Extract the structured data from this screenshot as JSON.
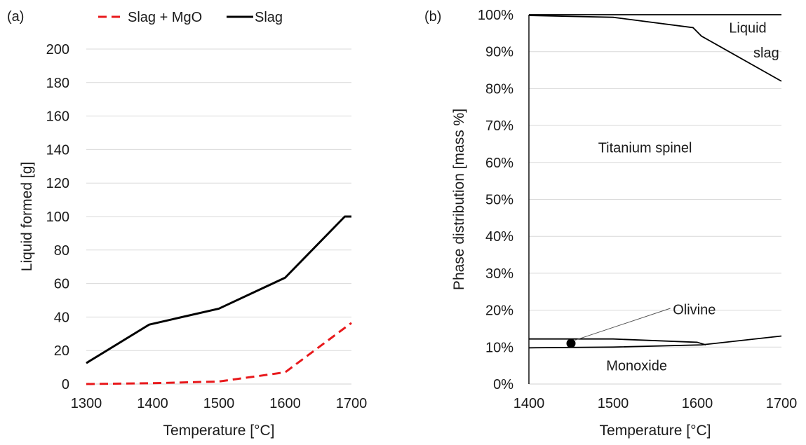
{
  "chart_data": [
    {
      "panel_label": "(a)",
      "type": "line",
      "xlabel": "Temperature [°C]",
      "ylabel": "Liquid formed [g]",
      "xlim": [
        1300,
        1700
      ],
      "ylim": [
        0,
        200
      ],
      "x_ticks": [
        1300,
        1400,
        1500,
        1600,
        1700
      ],
      "y_ticks": [
        0,
        20,
        40,
        60,
        80,
        100,
        120,
        140,
        160,
        180,
        200
      ],
      "grid": "horizontal",
      "legend_position": "top",
      "series": [
        {
          "name": "Slag + MgO",
          "color": "#e8191c",
          "dash": "dashed",
          "x": [
            1300,
            1400,
            1500,
            1600,
            1700
          ],
          "y": [
            0,
            0.5,
            1.5,
            7,
            36.5
          ]
        },
        {
          "name": "Slag",
          "color": "#000000",
          "dash": "solid",
          "x": [
            1300,
            1395,
            1500,
            1600,
            1690,
            1700
          ],
          "y": [
            12.5,
            35.5,
            45,
            63.5,
            100,
            100
          ]
        }
      ]
    },
    {
      "panel_label": "(b)",
      "type": "area",
      "xlabel": "Temperature [°C]",
      "ylabel": "Phase distribution [mass %]",
      "xlim": [
        1400,
        1700
      ],
      "ylim": [
        0,
        100
      ],
      "x_ticks": [
        "1400",
        "1500",
        "1600",
        "1700"
      ],
      "y_ticks": [
        "0%",
        "10%",
        "20%",
        "30%",
        "40%",
        "50%",
        "60%",
        "70%",
        "80%",
        "90%",
        "100%"
      ],
      "grid": "horizontal",
      "boundaries": [
        {
          "x": [
            1400,
            1500,
            1605,
            1700
          ],
          "y": [
            9.8,
            10.0,
            10.6,
            13.0
          ],
          "color": "#000000"
        },
        {
          "x": [
            1400,
            1500,
            1600,
            1610
          ],
          "y": [
            12.2,
            12.2,
            11.3,
            10.6
          ],
          "color": "#000000"
        },
        {
          "x": [
            1400,
            1500,
            1595,
            1605,
            1700
          ],
          "y": [
            99.8,
            99.3,
            96.5,
            94.2,
            82.0
          ],
          "color": "#000000"
        },
        {
          "x": [
            1400,
            1700
          ],
          "y": [
            100,
            100
          ],
          "color": "#000000"
        }
      ],
      "regions": [
        {
          "label": "Titanium spinel",
          "x": 1538,
          "y": 64
        },
        {
          "label": "Monoxide",
          "x": 1528,
          "y": 5
        },
        {
          "label": "Liquid",
          "x": 1660,
          "y": 96.5
        },
        {
          "label": "slag",
          "x": 1682,
          "y": 89.8
        }
      ],
      "annotations": [
        {
          "label": "Olivine",
          "text_x": 1571,
          "text_y": 20.2,
          "from_x": 1455,
          "from_y": 11.9,
          "to_x": 1568,
          "to_y": 20.5,
          "marker_x": 1450,
          "marker_y": 11.0
        }
      ]
    }
  ]
}
